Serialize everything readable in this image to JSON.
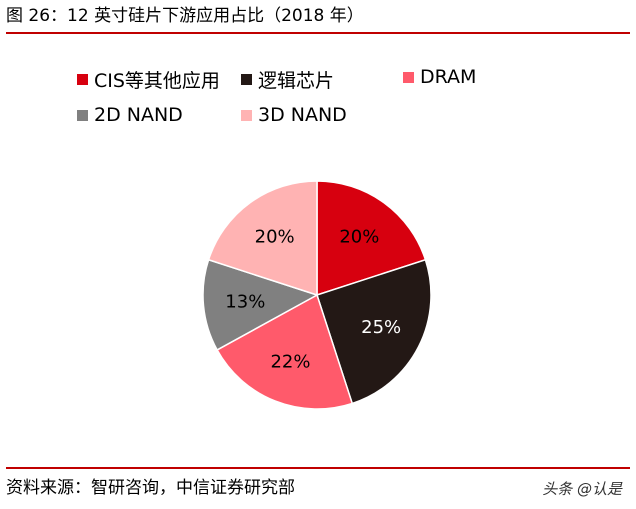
{
  "header": {
    "title": "图 26：12 英寸硅片下游应用占比（2018 年）"
  },
  "footer": {
    "source": "资料来源：智研咨询，中信证券研究部",
    "watermark": "头条 @认是"
  },
  "chart_data": {
    "type": "pie",
    "title": "",
    "categories": [
      "CIS等其他应用",
      "逻辑芯片",
      "DRAM",
      "2D NAND",
      "3D NAND"
    ],
    "values": [
      20,
      25,
      22,
      13,
      20
    ],
    "labels": [
      "20%",
      "25%",
      "22%",
      "13%",
      "20%"
    ],
    "colors": [
      "#d7000f",
      "#231815",
      "#ff5a6b",
      "#808080",
      "#ffb3b3"
    ],
    "legend_position": "top"
  }
}
